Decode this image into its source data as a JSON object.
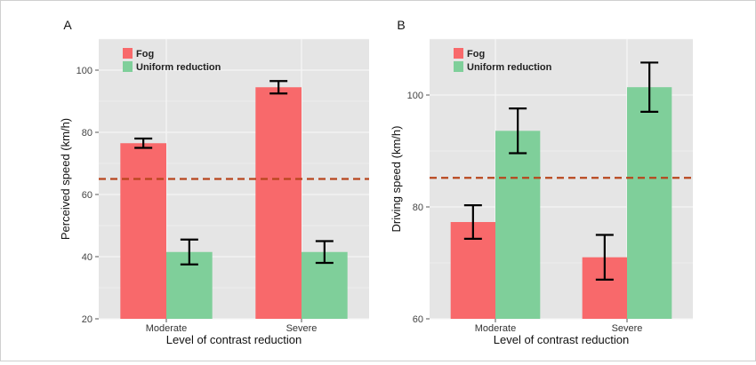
{
  "colors": {
    "fog": "#f8696b",
    "uniform": "#7fcf9a",
    "panel_bg": "#e5e5e5",
    "grid": "#f5f5f5",
    "reference_line": "#b8461d",
    "error_bar": "#000000"
  },
  "chart_data": [
    {
      "panel_label": "A",
      "type": "bar",
      "categories": [
        "Moderate",
        "Severe"
      ],
      "series": [
        {
          "name": "Fog",
          "values": [
            76.5,
            94.5
          ],
          "error_low": [
            75.0,
            92.5
          ],
          "error_high": [
            78.0,
            96.5
          ]
        },
        {
          "name": "Uniform reduction",
          "values": [
            41.5,
            41.5
          ],
          "error_low": [
            37.5,
            38.0
          ],
          "error_high": [
            45.5,
            45.0
          ]
        }
      ],
      "reference_line": 65,
      "xlabel": "Level of contrast reduction",
      "ylabel": "Perceived speed (km/h)",
      "ylim": [
        20,
        110
      ],
      "yticks": [
        20,
        40,
        60,
        80,
        100
      ],
      "legend": "top-left",
      "grid": true
    },
    {
      "panel_label": "B",
      "type": "bar",
      "categories": [
        "Moderate",
        "Severe"
      ],
      "series": [
        {
          "name": "Fog",
          "values": [
            77.3,
            71.0
          ],
          "error_low": [
            74.3,
            67.0
          ],
          "error_high": [
            80.3,
            75.0
          ]
        },
        {
          "name": "Uniform reduction",
          "values": [
            93.6,
            101.4
          ],
          "error_low": [
            89.6,
            97.0
          ],
          "error_high": [
            97.6,
            105.8
          ]
        }
      ],
      "reference_line": 85.2,
      "xlabel": "Level of contrast reduction",
      "ylabel": "Driving speed (km/h)",
      "ylim": [
        60,
        110
      ],
      "yticks": [
        60,
        80,
        100
      ],
      "legend": "top-left",
      "grid": true
    }
  ]
}
